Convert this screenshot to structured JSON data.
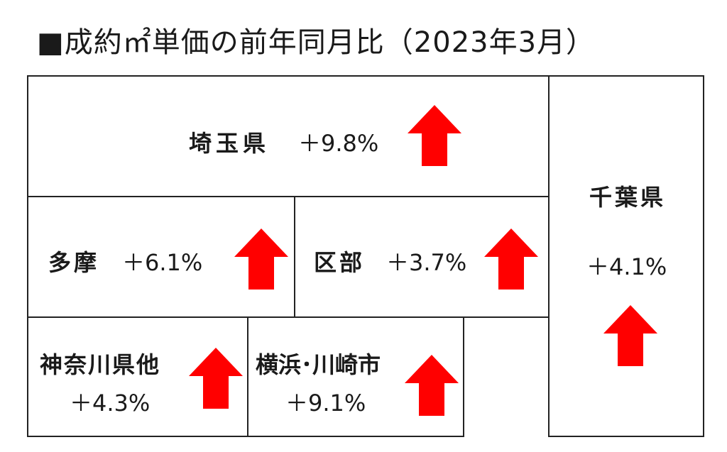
{
  "title": "■成約㎡単価の前年同月比（2023年3月）",
  "regions": [
    {
      "id": "saitama",
      "name": "埼玉県",
      "value": "＋9.8%",
      "arrow": "up"
    },
    {
      "id": "chiba",
      "name": "千葉県",
      "value": "＋4.1%",
      "arrow": "up"
    },
    {
      "id": "tama",
      "name": "多摩",
      "value": "＋6.1%",
      "arrow": "up"
    },
    {
      "id": "kubu",
      "name": "区部",
      "value": "＋3.7%",
      "arrow": "up"
    },
    {
      "id": "kanagawa",
      "name": "神奈川県他",
      "value": "＋4.3%",
      "arrow": "up"
    },
    {
      "id": "yokohama",
      "name": "横浜･川崎市",
      "value": "＋9.1%",
      "arrow": "up"
    }
  ],
  "colors": {
    "arrow": "#ff0000",
    "border": "#222222"
  }
}
